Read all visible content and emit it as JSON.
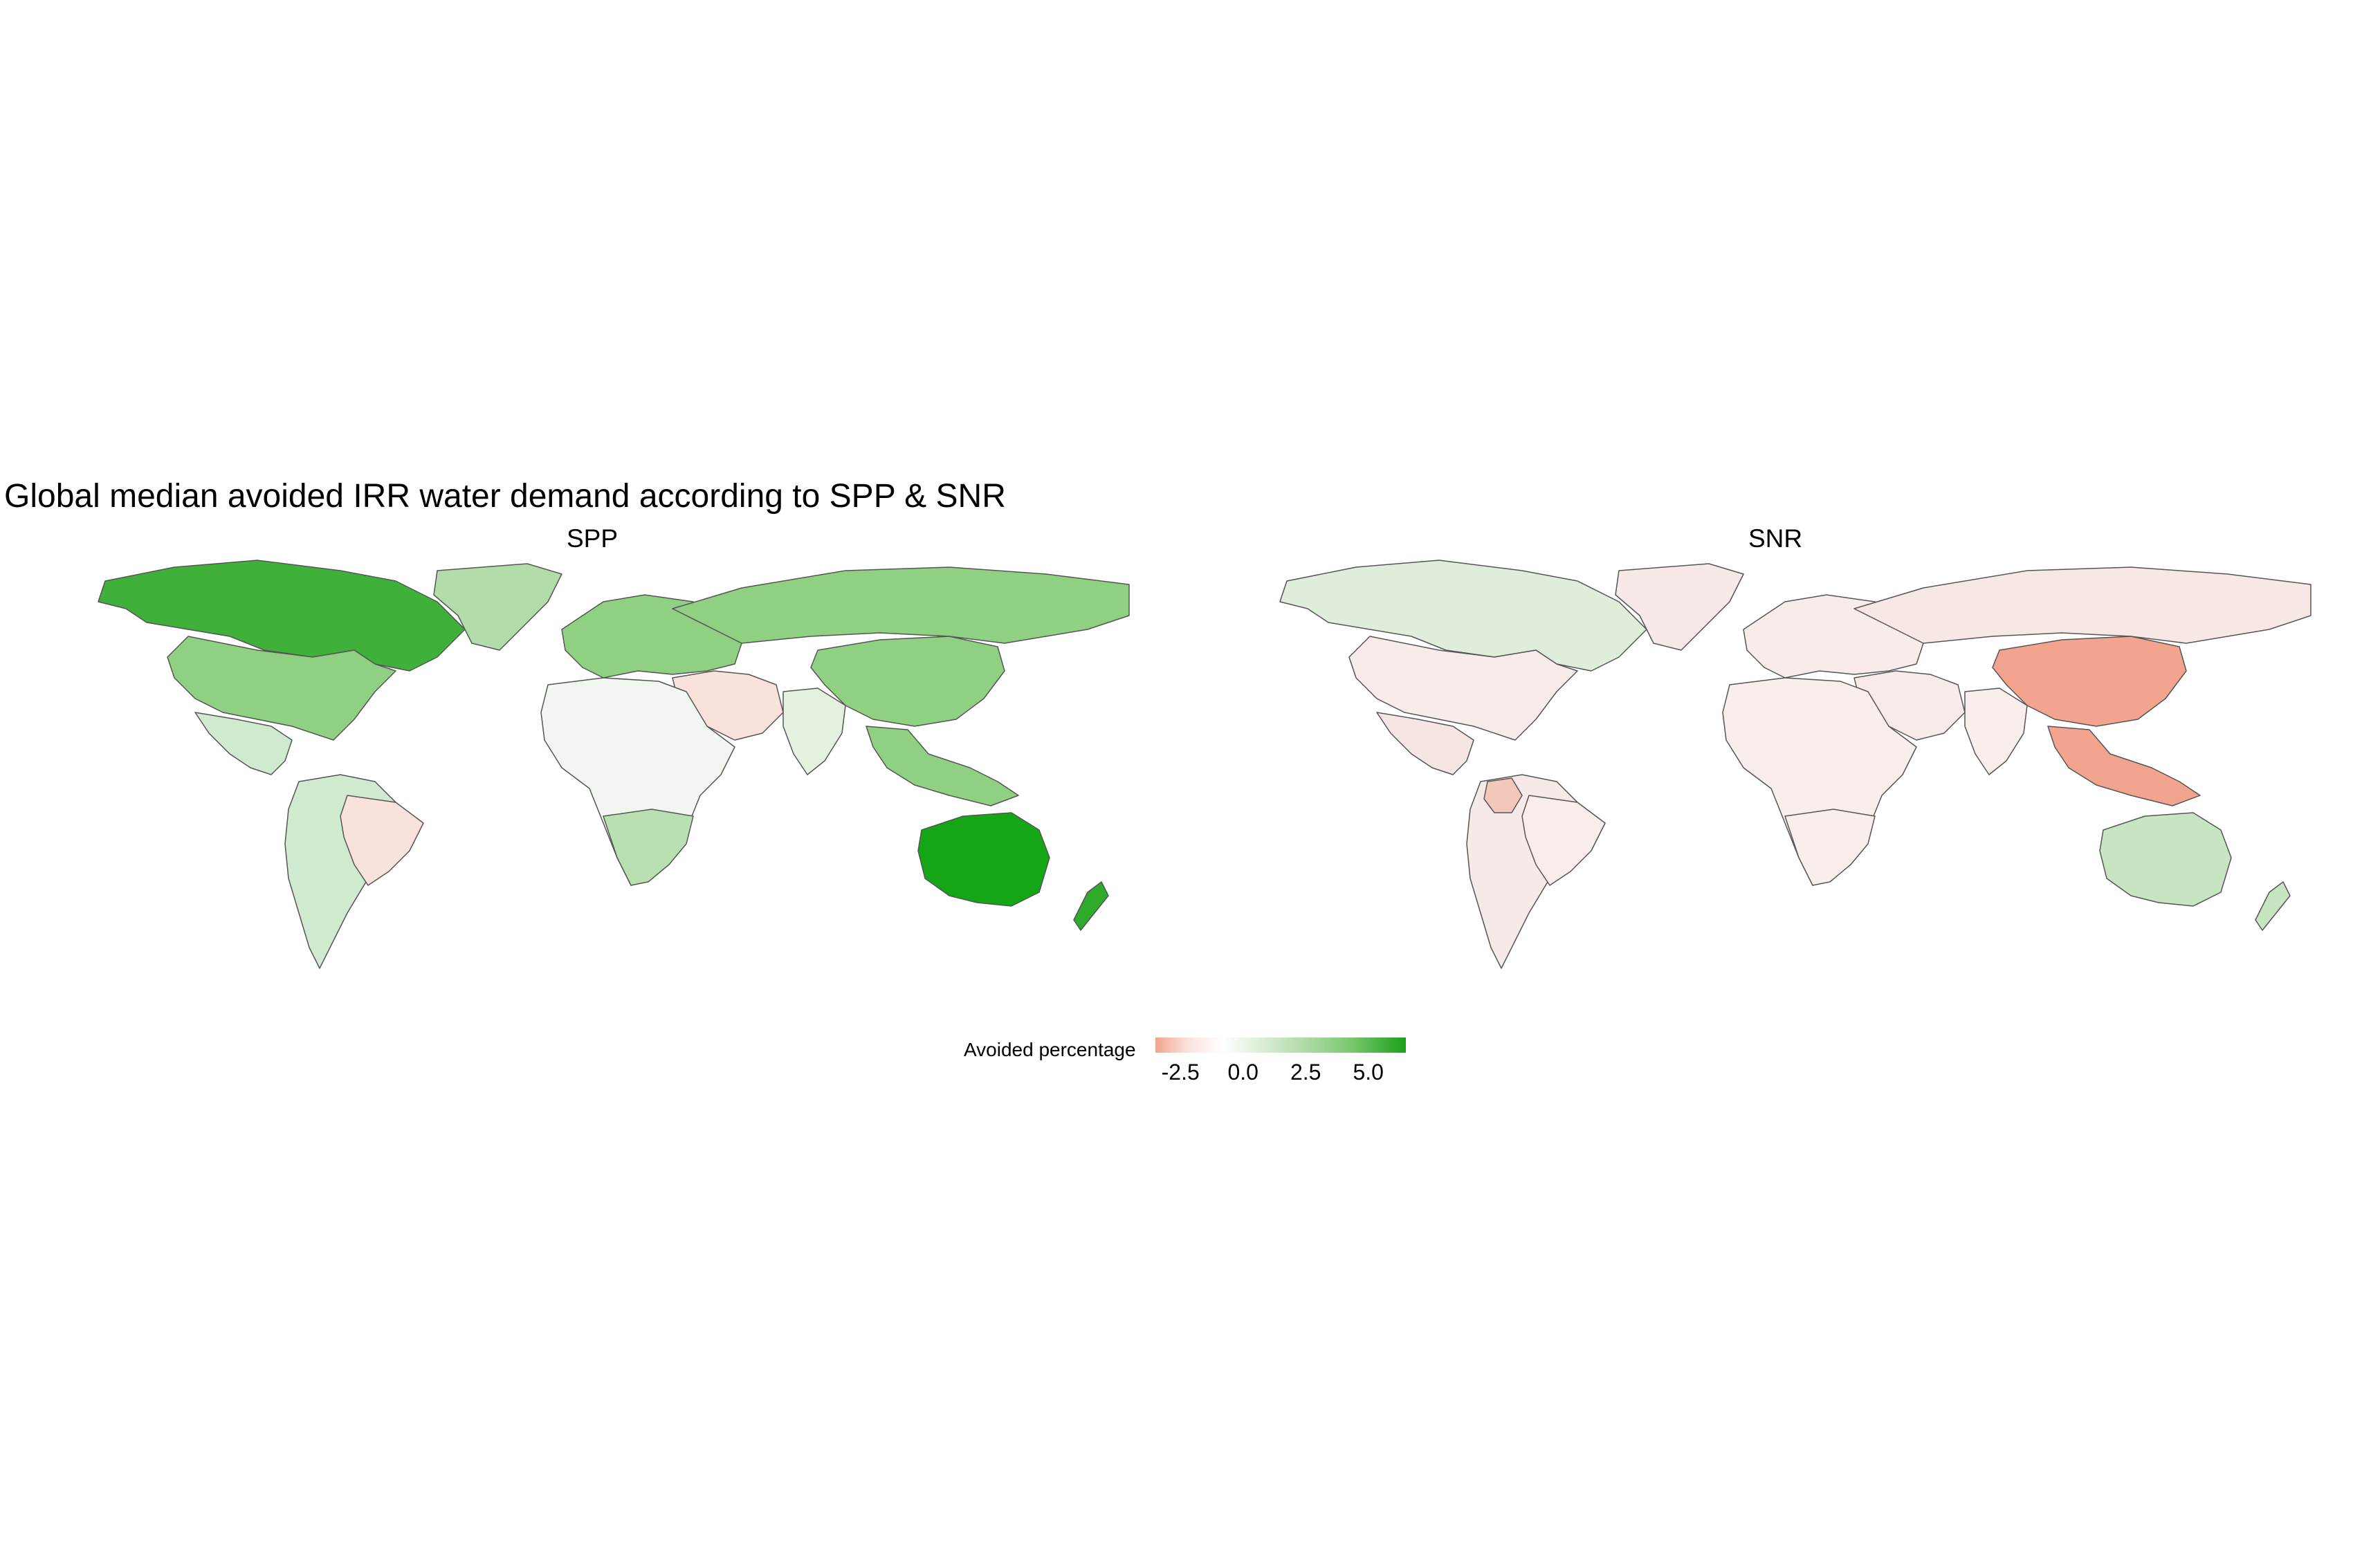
{
  "title": "Global median avoided IRR water demand according to SPP & SNR",
  "panels": [
    {
      "name": "SPP"
    },
    {
      "name": "SNR"
    }
  ],
  "legend": {
    "title": "Avoided percentage",
    "ticks": [
      "-2.5",
      "0.0",
      "2.5",
      "5.0"
    ],
    "range": [
      -3.5,
      6.5
    ],
    "colors": {
      "low": "#f2a48e",
      "mid": "#ffffff",
      "high": "#19a019"
    }
  },
  "colors": {
    "border": "#555555",
    "spp": {
      "canada": "#3fb03a",
      "usa": "#8fd083",
      "greenland": "#b2ddaa",
      "russia": "#8fd083",
      "europe": "#8fd083",
      "china": "#8fd083",
      "middle_east": "#f9e1dc",
      "africa": "#f2f6f0",
      "africa_south": "#b8e0b0",
      "brazil": "#f9e1dc",
      "south_america": "#d0ead0",
      "india": "#e3f1df",
      "se_asia": "#8fd083",
      "australia": "#15a615",
      "new_zealand": "#2fab2c",
      "mexico": "#d0ead0"
    },
    "snr": {
      "canada": "#deeeda",
      "usa": "#f8ecea",
      "greenland": "#f7e9e7",
      "russia": "#f8e8e5",
      "europe": "#f7ecea",
      "china": "#f2a48e",
      "middle_east": "#f6ebe8",
      "africa": "#f8eeec",
      "africa_south": "#f8eeec",
      "brazil": "#f8edea",
      "south_america": "#f6eae8",
      "colombia": "#f4c7bb",
      "india": "#f8eeec",
      "se_asia": "#f2a48e",
      "australia": "#c8e5c1",
      "new_zealand": "#c8e5c1",
      "mexico": "#f6e6e3"
    }
  }
}
